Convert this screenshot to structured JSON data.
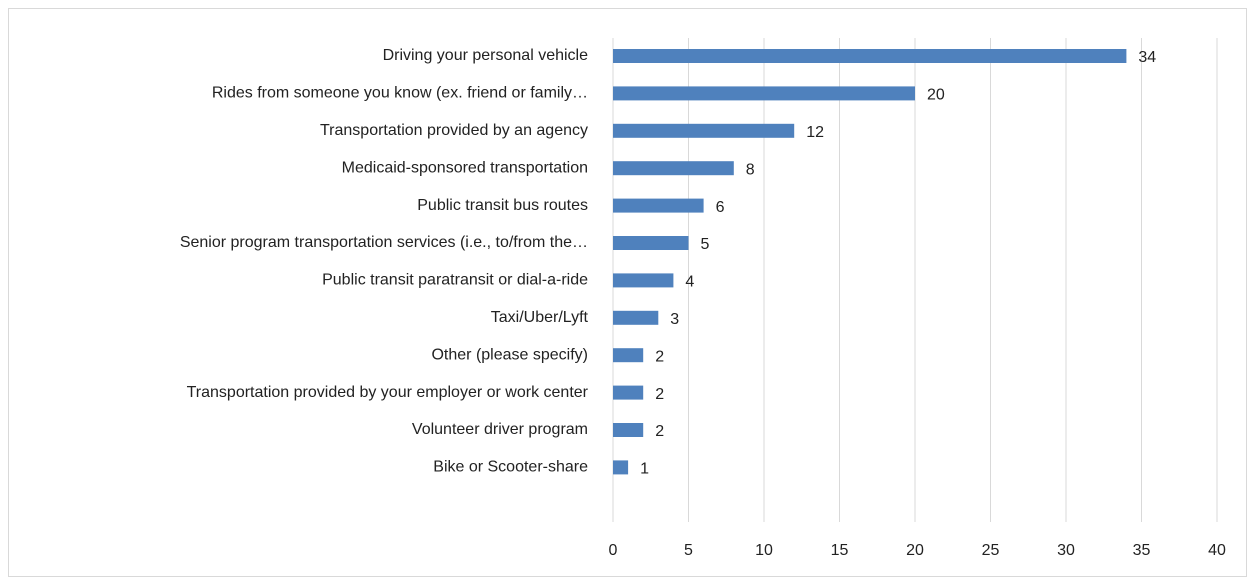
{
  "chart_data": {
    "type": "bar",
    "orientation": "horizontal",
    "categories": [
      "Driving your personal vehicle",
      "Rides from someone you know (ex. friend or family…",
      "Transportation provided by an agency",
      "Medicaid-sponsored transportation",
      "Public transit bus routes",
      "Senior program transportation services (i.e., to/from the…",
      "Public transit paratransit or dial-a-ride",
      "Taxi/Uber/Lyft",
      "Other (please specify)",
      "Transportation provided by your employer or work center",
      "Volunteer driver program",
      "Bike or Scooter-share"
    ],
    "values": [
      34,
      20,
      12,
      8,
      6,
      5,
      4,
      3,
      2,
      2,
      2,
      1
    ],
    "color": "#4f81bd",
    "xlim": [
      0,
      40
    ],
    "xticks": [
      0,
      5,
      10,
      15,
      20,
      25,
      30,
      35,
      40
    ],
    "grid": true
  }
}
